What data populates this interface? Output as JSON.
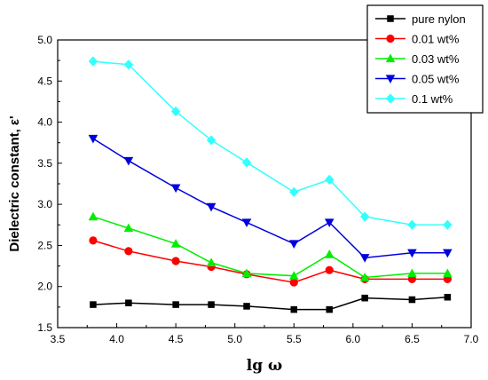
{
  "chart_data": {
    "type": "line",
    "xlabel": "lg ω",
    "ylabel": "Dielectric constant, ε'",
    "xlim": [
      3.5,
      7.0
    ],
    "ylim": [
      1.5,
      5.0
    ],
    "xticks": [
      "3.5",
      "4.0",
      "4.5",
      "5.0",
      "5.5",
      "6.0",
      "6.5",
      "7.0"
    ],
    "yticks": [
      "1.5",
      "2.0",
      "2.5",
      "3.0",
      "3.5",
      "4.0",
      "4.5",
      "5.0"
    ],
    "x": [
      3.8,
      4.1,
      4.5,
      4.8,
      5.1,
      5.5,
      5.8,
      6.1,
      6.5,
      6.8
    ],
    "grid": false,
    "legend_position": "top-right",
    "series": [
      {
        "name": "pure nylon",
        "color": "#000000",
        "marker": "square",
        "values": [
          1.78,
          1.8,
          1.78,
          1.78,
          1.76,
          1.72,
          1.72,
          1.86,
          1.84,
          1.87
        ]
      },
      {
        "name": "0.01 wt%",
        "color": "#ff0000",
        "marker": "circle",
        "values": [
          2.56,
          2.43,
          2.31,
          2.24,
          2.15,
          2.05,
          2.2,
          2.09,
          2.09,
          2.09
        ]
      },
      {
        "name": "0.03 wt%",
        "color": "#00ee00",
        "marker": "triangle-up",
        "values": [
          2.85,
          2.71,
          2.52,
          2.29,
          2.16,
          2.13,
          2.39,
          2.11,
          2.16,
          2.16
        ]
      },
      {
        "name": "0.05 wt%",
        "color": "#0000dd",
        "marker": "triangle-down",
        "values": [
          3.8,
          3.53,
          3.2,
          2.97,
          2.78,
          2.52,
          2.78,
          2.35,
          2.41,
          2.41
        ]
      },
      {
        "name": "0.1 wt%",
        "color": "#33ffff",
        "marker": "diamond",
        "values": [
          4.74,
          4.7,
          4.13,
          3.78,
          3.51,
          3.15,
          3.3,
          2.85,
          2.75,
          2.75
        ]
      }
    ]
  }
}
